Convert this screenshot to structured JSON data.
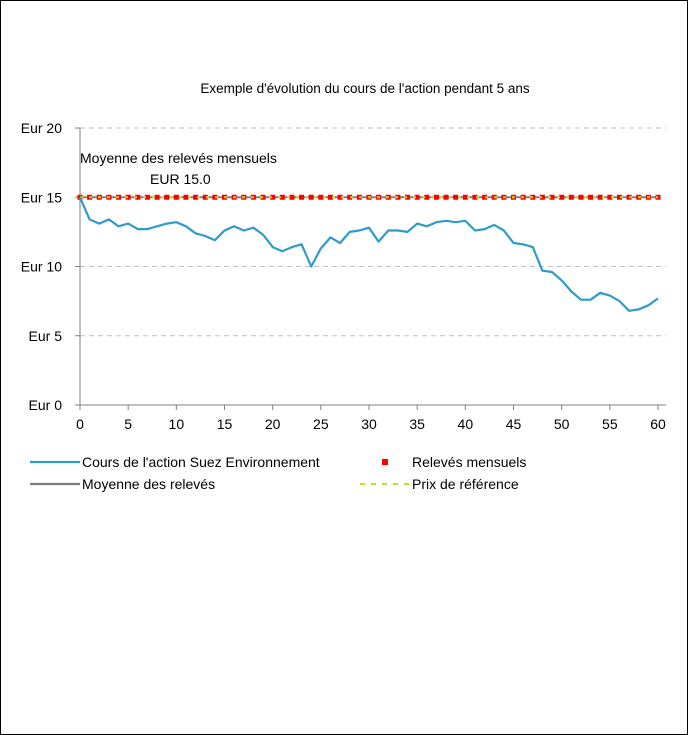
{
  "chart_data": {
    "type": "line",
    "title": "Exemple d'évolution du cours de l'action pendant 5 ans",
    "xlabel": "",
    "ylabel": "",
    "xlim": [
      0,
      60
    ],
    "ylim": [
      0,
      20
    ],
    "x_ticks": [
      0,
      5,
      10,
      15,
      20,
      25,
      30,
      35,
      40,
      45,
      50,
      55,
      60
    ],
    "y_ticks": [
      0,
      5,
      10,
      15,
      20
    ],
    "y_tick_labels": [
      "Eur 0",
      "Eur 5",
      "Eur 10",
      "Eur 15",
      "Eur 20"
    ],
    "grid": "horizontal dashed",
    "legend_position": "bottom",
    "annotation": {
      "line1": "Moyenne des relevés mensuels",
      "line2": "EUR 15.0"
    },
    "series": [
      {
        "name": "Cours de l'action Suez Environnement",
        "color": "#2E9BC9",
        "style": "solid",
        "x": [
          0,
          1,
          2,
          3,
          4,
          5,
          6,
          7,
          8,
          9,
          10,
          11,
          12,
          13,
          14,
          15,
          16,
          17,
          18,
          19,
          20,
          21,
          22,
          23,
          24,
          25,
          26,
          27,
          28,
          29,
          30,
          31,
          32,
          33,
          34,
          35,
          36,
          37,
          38,
          39,
          40,
          41,
          42,
          43,
          44,
          45,
          46,
          47,
          48,
          49,
          50,
          51,
          52,
          53,
          54,
          55,
          56,
          57,
          58,
          59,
          60
        ],
        "values": [
          15.0,
          13.4,
          13.1,
          13.4,
          12.9,
          13.1,
          12.7,
          12.7,
          12.9,
          13.1,
          13.2,
          12.9,
          12.4,
          12.2,
          11.9,
          12.6,
          12.9,
          12.6,
          12.8,
          12.3,
          11.4,
          11.1,
          11.4,
          11.6,
          10.0,
          11.3,
          12.1,
          11.7,
          12.5,
          12.6,
          12.8,
          11.8,
          12.6,
          12.6,
          12.5,
          13.1,
          12.9,
          13.2,
          13.3,
          13.2,
          13.3,
          12.6,
          12.7,
          13.0,
          12.6,
          11.7,
          11.6,
          11.4,
          9.7,
          9.6,
          9.0,
          8.2,
          7.6,
          7.6,
          8.1,
          7.9,
          7.5,
          6.8,
          6.9,
          7.2,
          7.7
        ]
      },
      {
        "name": "Relevés mensuels",
        "color": "#FF0000",
        "style": "dotted-markers",
        "x": [
          0,
          1,
          2,
          3,
          4,
          5,
          6,
          7,
          8,
          9,
          10,
          11,
          12,
          13,
          14,
          15,
          16,
          17,
          18,
          19,
          20,
          21,
          22,
          23,
          24,
          25,
          26,
          27,
          28,
          29,
          30,
          31,
          32,
          33,
          34,
          35,
          36,
          37,
          38,
          39,
          40,
          41,
          42,
          43,
          44,
          45,
          46,
          47,
          48,
          49,
          50,
          51,
          52,
          53,
          54,
          55,
          56,
          57,
          58,
          59,
          60
        ],
        "values": [
          15.0,
          15.0,
          15.0,
          15.0,
          15.0,
          15.0,
          15.0,
          15.0,
          15.0,
          15.0,
          15.0,
          15.0,
          15.0,
          15.0,
          15.0,
          15.0,
          15.0,
          15.0,
          15.0,
          15.0,
          15.0,
          15.0,
          15.0,
          15.0,
          15.0,
          15.0,
          15.0,
          15.0,
          15.0,
          15.0,
          15.0,
          15.0,
          15.0,
          15.0,
          15.0,
          15.0,
          15.0,
          15.0,
          15.0,
          15.0,
          15.0,
          15.0,
          15.0,
          15.0,
          15.0,
          15.0,
          15.0,
          15.0,
          15.0,
          15.0,
          15.0,
          15.0,
          15.0,
          15.0,
          15.0,
          15.0,
          15.0,
          15.0,
          15.0,
          15.0,
          15.0
        ]
      },
      {
        "name": "Moyenne des relevés",
        "color": "#808080",
        "style": "solid",
        "x": [
          0,
          60
        ],
        "values": [
          15.0,
          15.0
        ]
      },
      {
        "name": "Prix de référence",
        "color": "#C0DC2C",
        "style": "dashed",
        "x": [
          0,
          60
        ],
        "values": [
          15.0,
          15.0
        ]
      }
    ]
  }
}
